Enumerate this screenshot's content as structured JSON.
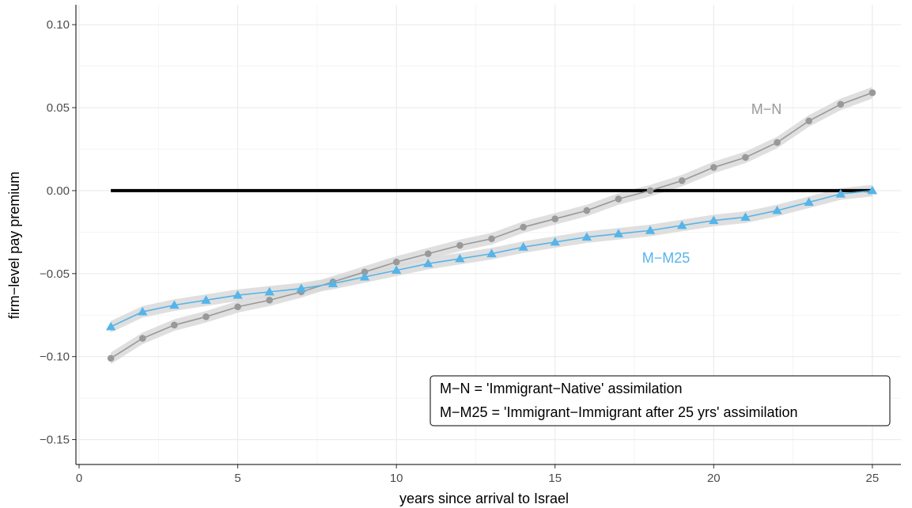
{
  "chart_data": {
    "type": "line",
    "xlabel": "years since arrival to Israel",
    "ylabel": "firm−level pay premium",
    "xlim": [
      -0.1,
      25.9
    ],
    "ylim": [
      -0.165,
      0.112
    ],
    "x_ticks": [
      0,
      5,
      10,
      15,
      20,
      25
    ],
    "x_tick_labels": [
      "0",
      "5",
      "10",
      "15",
      "20",
      "25"
    ],
    "y_ticks": [
      0.1,
      0.05,
      0.0,
      -0.05,
      -0.1,
      -0.15
    ],
    "y_tick_labels": [
      "0.10",
      "0.05",
      "0.00",
      "−0.05",
      "−0.10",
      "−0.15"
    ],
    "grid": true,
    "reference_line": {
      "y": 0,
      "x_from": 1,
      "x_to": 25,
      "color": "#000000"
    },
    "x": [
      1,
      2,
      3,
      4,
      5,
      6,
      7,
      8,
      9,
      10,
      11,
      12,
      13,
      14,
      15,
      16,
      17,
      18,
      19,
      20,
      21,
      22,
      23,
      24,
      25
    ],
    "series": [
      {
        "name": "M−N",
        "color": "#999999",
        "marker": "circle",
        "values": [
          -0.101,
          -0.089,
          -0.081,
          -0.076,
          -0.07,
          -0.066,
          -0.061,
          -0.055,
          -0.049,
          -0.043,
          -0.038,
          -0.033,
          -0.029,
          -0.022,
          -0.017,
          -0.012,
          -0.005,
          0.0,
          0.006,
          0.014,
          0.02,
          0.029,
          0.042,
          0.052,
          0.059
        ],
        "band_halfwidth": 0.0035
      },
      {
        "name": "M−M25",
        "color": "#56b4e9",
        "marker": "triangle",
        "values": [
          -0.082,
          -0.073,
          -0.069,
          -0.066,
          -0.063,
          -0.061,
          -0.059,
          -0.056,
          -0.052,
          -0.048,
          -0.044,
          -0.041,
          -0.038,
          -0.034,
          -0.031,
          -0.028,
          -0.026,
          -0.024,
          -0.021,
          -0.018,
          -0.016,
          -0.012,
          -0.007,
          -0.002,
          0.0
        ],
        "band_halfwidth": 0.0035
      }
    ],
    "annotations": [
      {
        "text": "M−N",
        "series": 0
      },
      {
        "text": "M−M25",
        "series": 1
      }
    ],
    "legend": {
      "position": "bottom-right",
      "lines": [
        "M−N = 'Immigrant−Native' assimilation",
        "M−M25 = 'Immigrant−Immigrant after 25 yrs' assimilation"
      ]
    },
    "band_color": "#d9d9d9"
  }
}
